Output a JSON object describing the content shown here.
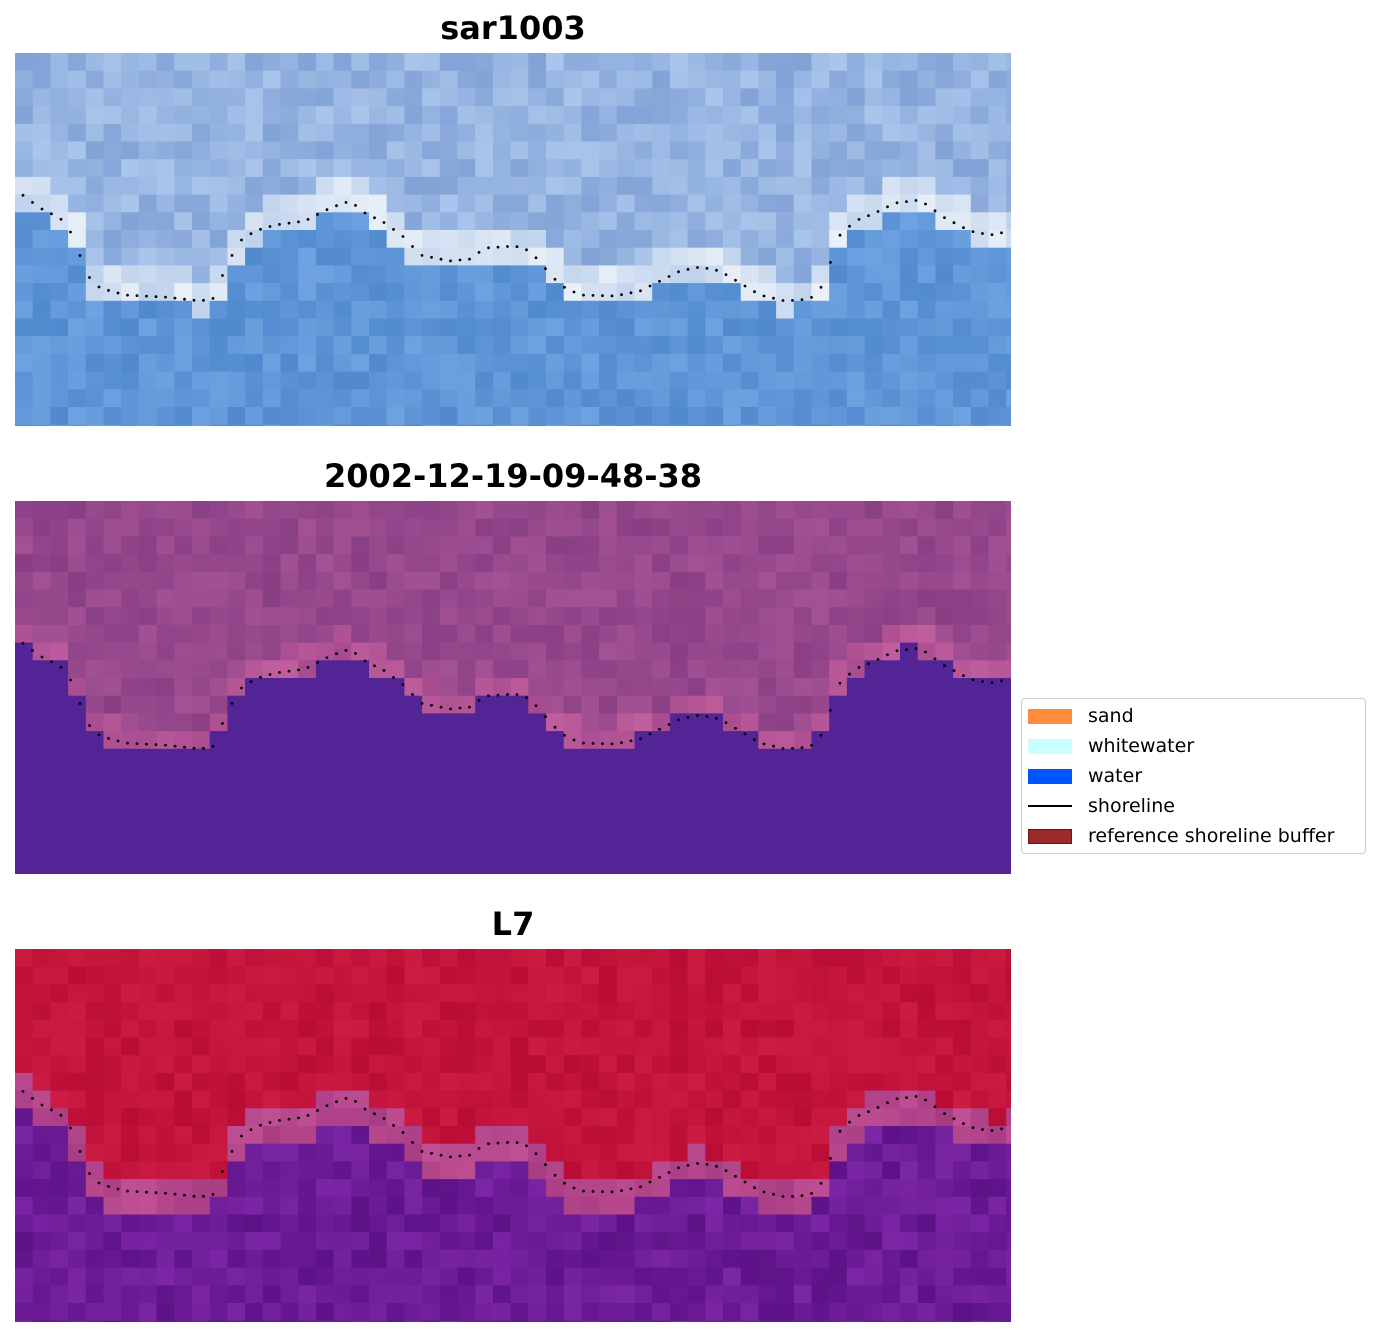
{
  "panels": [
    {
      "title": "sar1003",
      "palette": "rgb"
    },
    {
      "title": "2002-12-19-09-48-38",
      "palette": "mndwi"
    },
    {
      "title": "L7",
      "palette": "ndwi"
    }
  ],
  "legend": {
    "items": [
      {
        "label": "sand",
        "color": "#ff8c3c",
        "kind": "patch"
      },
      {
        "label": "whitewater",
        "color": "#c8ffff",
        "kind": "patch"
      },
      {
        "label": "water",
        "color": "#0055ff",
        "kind": "patch"
      },
      {
        "label": "shoreline",
        "color": "#000000",
        "kind": "line"
      },
      {
        "label": "reference shoreline buffer",
        "color": "#9b2a2a",
        "kind": "patch"
      }
    ]
  }
}
